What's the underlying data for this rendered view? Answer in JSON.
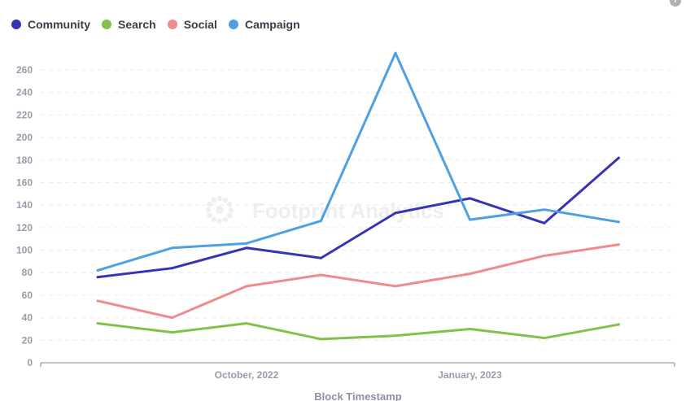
{
  "chart_data": {
    "type": "line",
    "title": "",
    "xlabel": "Block Timestamp",
    "ylabel": "",
    "x": [
      "2022-08",
      "2022-09",
      "2022-10",
      "2022-11",
      "2022-12",
      "2023-01",
      "2023-02",
      "2023-03"
    ],
    "x_tick_labels": [
      {
        "at": "2022-10",
        "label": "October, 2022"
      },
      {
        "at": "2023-01",
        "label": "January, 2023"
      }
    ],
    "ylim": [
      0,
      260
    ],
    "y_ticks": [
      0,
      20,
      40,
      60,
      80,
      100,
      120,
      140,
      160,
      180,
      200,
      220,
      240,
      260
    ],
    "grid": true,
    "legend_position": "top-left",
    "series": [
      {
        "name": "Community",
        "color": "#3634b5",
        "values": [
          76,
          84,
          102,
          93,
          133,
          146,
          124,
          182
        ]
      },
      {
        "name": "Search",
        "color": "#82c04a",
        "values": [
          35,
          27,
          35,
          21,
          24,
          30,
          22,
          34
        ]
      },
      {
        "name": "Social",
        "color": "#f08b8b",
        "values": [
          55,
          40,
          68,
          78,
          68,
          79,
          95,
          105
        ]
      },
      {
        "name": "Campaign",
        "color": "#4f9fe3",
        "values": [
          82,
          102,
          106,
          126,
          275,
          127,
          136,
          125
        ]
      }
    ]
  },
  "watermark": "Footprint Analytics",
  "info_icon": "info-icon"
}
